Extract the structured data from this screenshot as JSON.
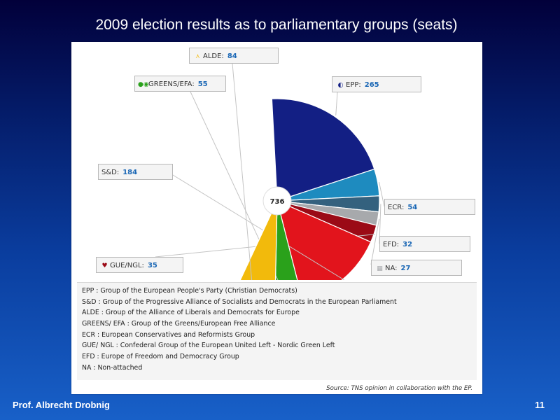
{
  "slide": {
    "title": "2009 election results as to parliamentary groups (seats)",
    "author": "Prof. Albrecht Drobnig",
    "page_number": "11"
  },
  "chart_data": {
    "type": "pie",
    "variant": "semicircle",
    "center_label": "736",
    "slices": [
      {
        "label": "EPP",
        "value": 265,
        "color": "#131f84"
      },
      {
        "label": "ECR",
        "value": 54,
        "color": "#1e8bbf"
      },
      {
        "label": "EFD",
        "value": 32,
        "color": "#34617e"
      },
      {
        "label": "NA",
        "value": 27,
        "color": "#a7a9ac"
      },
      {
        "label": "GUE/NGL",
        "value": 35,
        "color": "#9b0a16"
      },
      {
        "label": "S&D",
        "value": 184,
        "color": "#e2141c"
      },
      {
        "label": "GREENS/EFA",
        "value": 55,
        "color": "#2aa11b"
      },
      {
        "label": "ALDE",
        "value": 84,
        "color": "#f2ba0c"
      }
    ],
    "legend": [
      "EPP : Group of the European People's Party (Christian Democrats)",
      "S&D : Group of the Progressive Alliance of Socialists and Democrats in the European Parliament",
      "ALDE : Group of the Alliance of Liberals and Democrats for Europe",
      "GREENS/ EFA : Group of the Greens/European Free Alliance",
      "ECR : European Conservatives and Reformists Group",
      "GUE/ NGL : Confederal Group of the European United Left - Nordic Green Left",
      "EFD : Europe of Freedom and Democracy Group",
      "NA : Non-attached"
    ],
    "source": "Source: TNS opinion in collaboration with the EP."
  }
}
